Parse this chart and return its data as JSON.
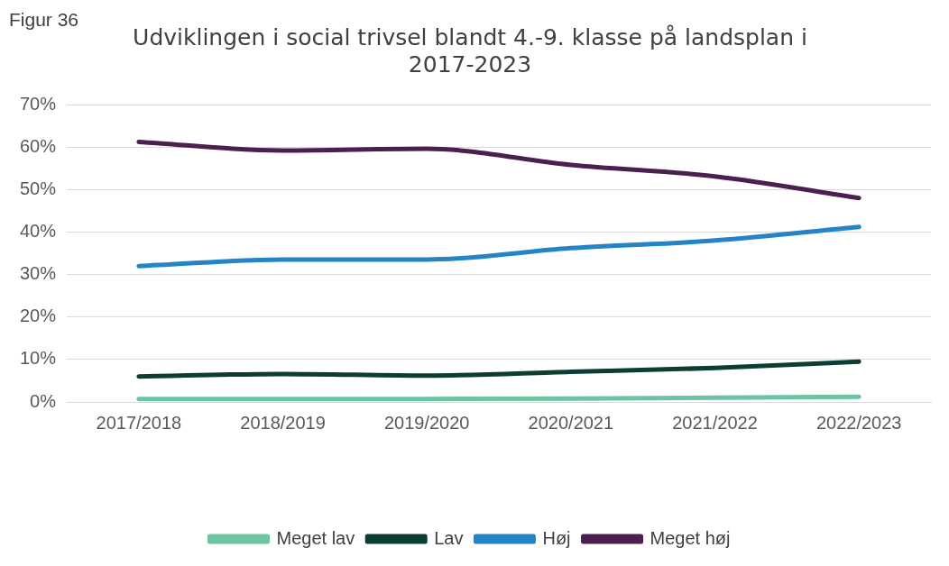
{
  "chart_data": {
    "type": "line",
    "title": "Udviklingen i social trivsel blandt 4.-9. klasse på landsplan i 2017-2023",
    "annotations": [
      "Figur 36"
    ],
    "categories": [
      "2017/2018",
      "2018/2019",
      "2019/2020",
      "2020/2021",
      "2021/2022",
      "2022/2023"
    ],
    "series": [
      {
        "name": "Meget lav",
        "color": "#6cc4a0",
        "values": [
          0.7,
          0.7,
          0.7,
          0.8,
          1.0,
          1.2
        ]
      },
      {
        "name": "Lav",
        "color": "#0b3d33",
        "values": [
          6.0,
          6.6,
          6.2,
          7.1,
          8.0,
          9.5
        ]
      },
      {
        "name": "Høj",
        "color": "#2584c6",
        "values": [
          32.0,
          33.5,
          33.5,
          36.2,
          38.0,
          41.2
        ]
      },
      {
        "name": "Meget høj",
        "color": "#4b2050",
        "values": [
          61.2,
          59.2,
          59.6,
          55.8,
          53.1,
          48.0
        ]
      }
    ],
    "ylim": [
      0,
      70
    ],
    "yticks": [
      {
        "value": 0,
        "label": "0%"
      },
      {
        "value": 10,
        "label": "10%"
      },
      {
        "value": 20,
        "label": "20%"
      },
      {
        "value": 30,
        "label": "30%"
      },
      {
        "value": 40,
        "label": "40%"
      },
      {
        "value": 50,
        "label": "50%"
      },
      {
        "value": 60,
        "label": "60%"
      },
      {
        "value": 70,
        "label": "70%"
      }
    ],
    "grid": "y",
    "legend": "bottom",
    "marker": "none",
    "line_style": "solid"
  }
}
